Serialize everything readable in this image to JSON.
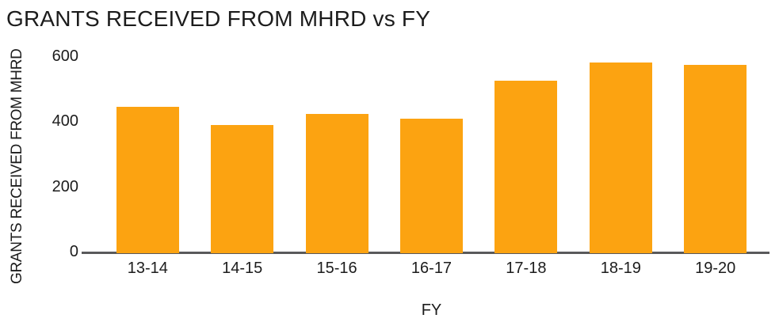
{
  "chart_data": {
    "type": "bar",
    "title": "GRANTS RECEIVED FROM MHRD vs FY",
    "categories": [
      "13-14",
      "14-15",
      "15-16",
      "16-17",
      "17-18",
      "18-19",
      "19-20"
    ],
    "values": [
      449,
      393,
      427,
      413,
      529,
      585,
      578
    ],
    "xlabel": "FY",
    "ylabel": "GRANTS RECEIVED FROM MHRD",
    "ylim": [
      0,
      600
    ],
    "yticks": [
      0,
      200,
      400,
      600
    ],
    "bar_color": "#FCA311",
    "axis_color": "#59595B",
    "text_color": "#1C1C1C",
    "background": "#FFFFFF",
    "grid": false,
    "legend": false
  }
}
